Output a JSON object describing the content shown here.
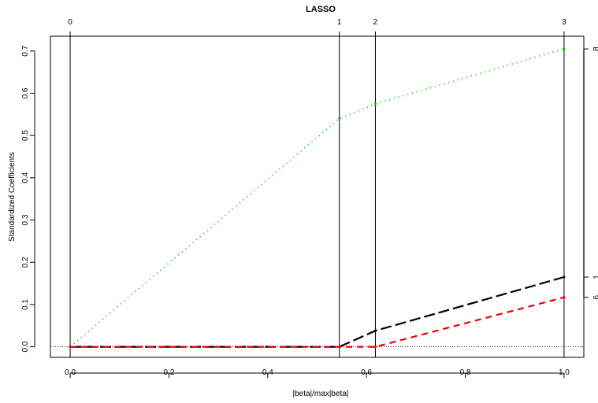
{
  "chart_data": {
    "type": "line",
    "title": "LASSO",
    "xlabel": "|beta|/max|beta|",
    "ylabel": "Standardized Coefficients",
    "xlim": [
      -0.04,
      1.04
    ],
    "ylim": [
      -0.025,
      0.735
    ],
    "x_ticks": [
      "0.0",
      "0.2",
      "0.4",
      "0.6",
      "0.8",
      "1.0"
    ],
    "y_ticks": [
      "0.0",
      "0.1",
      "0.2",
      "0.3",
      "0.4",
      "0.5",
      "0.6",
      "0.7"
    ],
    "steps": [
      {
        "label": "0",
        "x": 0.0
      },
      {
        "label": "1",
        "x": 0.545
      },
      {
        "label": "2",
        "x": 0.618
      },
      {
        "label": "3",
        "x": 1.0
      }
    ],
    "right_labels": [
      {
        "label": "8",
        "y": 0.705
      },
      {
        "label": "1",
        "y": 0.165
      },
      {
        "label": "6",
        "y": 0.117
      }
    ],
    "grid": false,
    "series": [
      {
        "color": "#00bb00",
        "dash": "1,5",
        "width": 1.8,
        "points": [
          [
            0.0,
            0.0
          ],
          [
            0.545,
            0.54
          ],
          [
            0.618,
            0.575
          ],
          [
            1.0,
            0.705
          ]
        ]
      },
      {
        "color": "#000000",
        "dash": "14,5",
        "width": 2.2,
        "points": [
          [
            0.0,
            0.0
          ],
          [
            0.545,
            0.0
          ],
          [
            0.618,
            0.038
          ],
          [
            1.0,
            0.165
          ]
        ]
      },
      {
        "color": "#ee0000",
        "dash": "8,6",
        "width": 2.2,
        "points": [
          [
            0.0,
            0.0
          ],
          [
            0.618,
            0.0
          ],
          [
            1.0,
            0.117
          ]
        ]
      }
    ]
  }
}
